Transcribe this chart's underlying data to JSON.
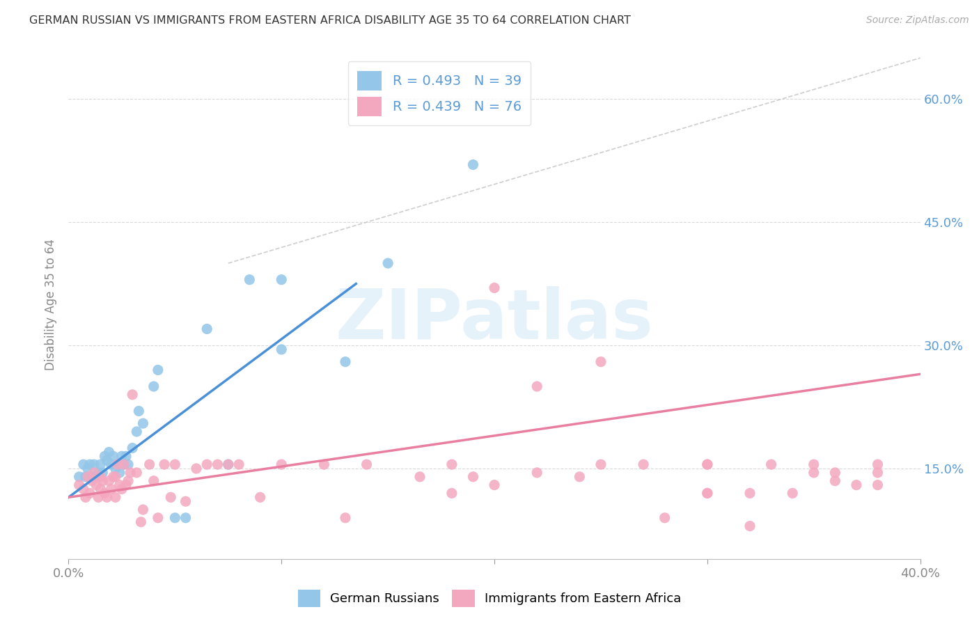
{
  "title": "GERMAN RUSSIAN VS IMMIGRANTS FROM EASTERN AFRICA DISABILITY AGE 35 TO 64 CORRELATION CHART",
  "source": "Source: ZipAtlas.com",
  "ylabel_label": "Disability Age 35 to 64",
  "xlim": [
    0.0,
    0.4
  ],
  "ylim": [
    0.04,
    0.66
  ],
  "x_ticks": [
    0.0,
    0.1,
    0.2,
    0.3,
    0.4
  ],
  "x_tick_labels": [
    "0.0%",
    "",
    "",
    "",
    "40.0%"
  ],
  "y_ticks": [
    0.15,
    0.3,
    0.45,
    0.6
  ],
  "y_tick_labels": [
    "15.0%",
    "30.0%",
    "45.0%",
    "60.0%"
  ],
  "watermark_text": "ZIPatlas",
  "legend_label1": "R = 0.493   N = 39",
  "legend_label2": "R = 0.439   N = 76",
  "bottom_label1": "German Russians",
  "bottom_label2": "Immigrants from Eastern Africa",
  "color_blue": "#93c6e8",
  "color_pink": "#f4a8c0",
  "color_blue_dark": "#4a90d9",
  "color_pink_dark": "#e87fa0",
  "color_blue_text": "#5b9bd5",
  "color_diag": "#c8c8c8",
  "blue_scatter_x": [
    0.005,
    0.007,
    0.008,
    0.009,
    0.01,
    0.011,
    0.012,
    0.013,
    0.014,
    0.015,
    0.016,
    0.017,
    0.018,
    0.019,
    0.02,
    0.021,
    0.022,
    0.023,
    0.024,
    0.025,
    0.026,
    0.027,
    0.028,
    0.03,
    0.032,
    0.033,
    0.035,
    0.04,
    0.042,
    0.05,
    0.055,
    0.065,
    0.075,
    0.085,
    0.1,
    0.1,
    0.13,
    0.15,
    0.19
  ],
  "blue_scatter_y": [
    0.14,
    0.155,
    0.14,
    0.15,
    0.155,
    0.14,
    0.155,
    0.14,
    0.145,
    0.155,
    0.145,
    0.165,
    0.16,
    0.17,
    0.155,
    0.165,
    0.15,
    0.155,
    0.145,
    0.165,
    0.155,
    0.165,
    0.155,
    0.175,
    0.195,
    0.22,
    0.205,
    0.25,
    0.27,
    0.09,
    0.09,
    0.32,
    0.155,
    0.38,
    0.295,
    0.38,
    0.28,
    0.4,
    0.52
  ],
  "pink_scatter_x": [
    0.005,
    0.007,
    0.008,
    0.009,
    0.01,
    0.011,
    0.012,
    0.013,
    0.014,
    0.015,
    0.015,
    0.016,
    0.017,
    0.018,
    0.019,
    0.02,
    0.021,
    0.022,
    0.022,
    0.023,
    0.024,
    0.025,
    0.026,
    0.027,
    0.028,
    0.029,
    0.03,
    0.032,
    0.034,
    0.035,
    0.038,
    0.04,
    0.042,
    0.045,
    0.048,
    0.05,
    0.055,
    0.06,
    0.065,
    0.07,
    0.075,
    0.08,
    0.09,
    0.1,
    0.12,
    0.14,
    0.165,
    0.19,
    0.2,
    0.22,
    0.24,
    0.25,
    0.28,
    0.3,
    0.3,
    0.32,
    0.34,
    0.36,
    0.37,
    0.38,
    0.2,
    0.22,
    0.25,
    0.27,
    0.3,
    0.33,
    0.35,
    0.36,
    0.38,
    0.38,
    0.35,
    0.32,
    0.3,
    0.18,
    0.13,
    0.18
  ],
  "pink_scatter_y": [
    0.13,
    0.125,
    0.115,
    0.14,
    0.12,
    0.135,
    0.145,
    0.13,
    0.115,
    0.125,
    0.14,
    0.135,
    0.12,
    0.115,
    0.135,
    0.125,
    0.14,
    0.115,
    0.14,
    0.155,
    0.13,
    0.125,
    0.155,
    0.13,
    0.135,
    0.145,
    0.24,
    0.145,
    0.085,
    0.1,
    0.155,
    0.135,
    0.09,
    0.155,
    0.115,
    0.155,
    0.11,
    0.15,
    0.155,
    0.155,
    0.155,
    0.155,
    0.115,
    0.155,
    0.155,
    0.155,
    0.14,
    0.14,
    0.13,
    0.145,
    0.14,
    0.155,
    0.09,
    0.155,
    0.12,
    0.12,
    0.12,
    0.135,
    0.13,
    0.155,
    0.37,
    0.25,
    0.28,
    0.155,
    0.155,
    0.155,
    0.145,
    0.145,
    0.13,
    0.145,
    0.155,
    0.08,
    0.12,
    0.155,
    0.09,
    0.12
  ],
  "blue_line_x": [
    0.0,
    0.135
  ],
  "blue_line_y": [
    0.115,
    0.375
  ],
  "pink_line_x": [
    0.0,
    0.4
  ],
  "pink_line_y": [
    0.115,
    0.265
  ],
  "diag_line_x": [
    0.075,
    0.4
  ],
  "diag_line_y": [
    0.4,
    0.65
  ],
  "background_color": "#ffffff",
  "grid_color": "#d0d0d0"
}
